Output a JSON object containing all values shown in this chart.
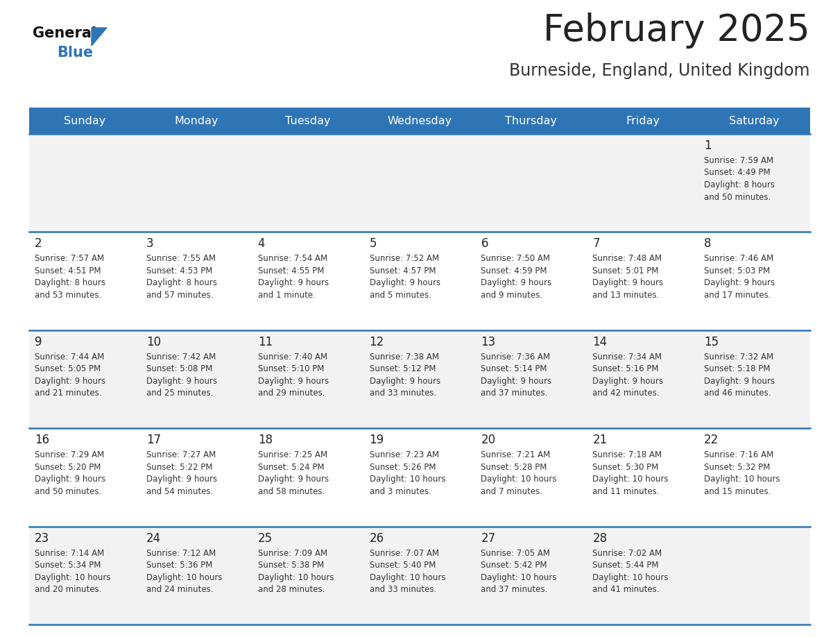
{
  "title": "February 2025",
  "subtitle": "Burneside, England, United Kingdom",
  "days_of_week": [
    "Sunday",
    "Monday",
    "Tuesday",
    "Wednesday",
    "Thursday",
    "Friday",
    "Saturday"
  ],
  "header_bg": "#2E75B6",
  "header_text": "#FFFFFF",
  "row_bg_odd": "#F2F2F2",
  "row_bg_even": "#FFFFFF",
  "cell_border": "#2E75B6",
  "day_num_color": "#222222",
  "text_color": "#333333",
  "title_color": "#222222",
  "subtitle_color": "#333333",
  "logo_general_color": "#111111",
  "logo_blue_color": "#2E75B6",
  "fig_width": 11.88,
  "fig_height": 9.18,
  "dpi": 100,
  "calendar_data": [
    [
      null,
      null,
      null,
      null,
      null,
      null,
      {
        "day": 1,
        "sunrise": "7:59 AM",
        "sunset": "4:49 PM",
        "daylight": "8 hours and 50 minutes."
      }
    ],
    [
      {
        "day": 2,
        "sunrise": "7:57 AM",
        "sunset": "4:51 PM",
        "daylight": "8 hours and 53 minutes."
      },
      {
        "day": 3,
        "sunrise": "7:55 AM",
        "sunset": "4:53 PM",
        "daylight": "8 hours and 57 minutes."
      },
      {
        "day": 4,
        "sunrise": "7:54 AM",
        "sunset": "4:55 PM",
        "daylight": "9 hours and 1 minute."
      },
      {
        "day": 5,
        "sunrise": "7:52 AM",
        "sunset": "4:57 PM",
        "daylight": "9 hours and 5 minutes."
      },
      {
        "day": 6,
        "sunrise": "7:50 AM",
        "sunset": "4:59 PM",
        "daylight": "9 hours and 9 minutes."
      },
      {
        "day": 7,
        "sunrise": "7:48 AM",
        "sunset": "5:01 PM",
        "daylight": "9 hours and 13 minutes."
      },
      {
        "day": 8,
        "sunrise": "7:46 AM",
        "sunset": "5:03 PM",
        "daylight": "9 hours and 17 minutes."
      }
    ],
    [
      {
        "day": 9,
        "sunrise": "7:44 AM",
        "sunset": "5:05 PM",
        "daylight": "9 hours and 21 minutes."
      },
      {
        "day": 10,
        "sunrise": "7:42 AM",
        "sunset": "5:08 PM",
        "daylight": "9 hours and 25 minutes."
      },
      {
        "day": 11,
        "sunrise": "7:40 AM",
        "sunset": "5:10 PM",
        "daylight": "9 hours and 29 minutes."
      },
      {
        "day": 12,
        "sunrise": "7:38 AM",
        "sunset": "5:12 PM",
        "daylight": "9 hours and 33 minutes."
      },
      {
        "day": 13,
        "sunrise": "7:36 AM",
        "sunset": "5:14 PM",
        "daylight": "9 hours and 37 minutes."
      },
      {
        "day": 14,
        "sunrise": "7:34 AM",
        "sunset": "5:16 PM",
        "daylight": "9 hours and 42 minutes."
      },
      {
        "day": 15,
        "sunrise": "7:32 AM",
        "sunset": "5:18 PM",
        "daylight": "9 hours and 46 minutes."
      }
    ],
    [
      {
        "day": 16,
        "sunrise": "7:29 AM",
        "sunset": "5:20 PM",
        "daylight": "9 hours and 50 minutes."
      },
      {
        "day": 17,
        "sunrise": "7:27 AM",
        "sunset": "5:22 PM",
        "daylight": "9 hours and 54 minutes."
      },
      {
        "day": 18,
        "sunrise": "7:25 AM",
        "sunset": "5:24 PM",
        "daylight": "9 hours and 58 minutes."
      },
      {
        "day": 19,
        "sunrise": "7:23 AM",
        "sunset": "5:26 PM",
        "daylight": "10 hours and 3 minutes."
      },
      {
        "day": 20,
        "sunrise": "7:21 AM",
        "sunset": "5:28 PM",
        "daylight": "10 hours and 7 minutes."
      },
      {
        "day": 21,
        "sunrise": "7:18 AM",
        "sunset": "5:30 PM",
        "daylight": "10 hours and 11 minutes."
      },
      {
        "day": 22,
        "sunrise": "7:16 AM",
        "sunset": "5:32 PM",
        "daylight": "10 hours and 15 minutes."
      }
    ],
    [
      {
        "day": 23,
        "sunrise": "7:14 AM",
        "sunset": "5:34 PM",
        "daylight": "10 hours and 20 minutes."
      },
      {
        "day": 24,
        "sunrise": "7:12 AM",
        "sunset": "5:36 PM",
        "daylight": "10 hours and 24 minutes."
      },
      {
        "day": 25,
        "sunrise": "7:09 AM",
        "sunset": "5:38 PM",
        "daylight": "10 hours and 28 minutes."
      },
      {
        "day": 26,
        "sunrise": "7:07 AM",
        "sunset": "5:40 PM",
        "daylight": "10 hours and 33 minutes."
      },
      {
        "day": 27,
        "sunrise": "7:05 AM",
        "sunset": "5:42 PM",
        "daylight": "10 hours and 37 minutes."
      },
      {
        "day": 28,
        "sunrise": "7:02 AM",
        "sunset": "5:44 PM",
        "daylight": "10 hours and 41 minutes."
      },
      null
    ]
  ]
}
